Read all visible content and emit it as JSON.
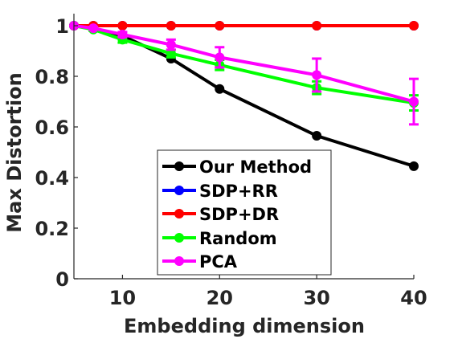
{
  "chart_data": {
    "type": "line",
    "title": "",
    "xlabel": "Embedding dimension",
    "ylabel": "Max Distortion",
    "xlim": [
      5,
      40
    ],
    "ylim": [
      0,
      1
    ],
    "xticks": [
      10,
      20,
      30,
      40
    ],
    "yticks": [
      0,
      0.2,
      0.4,
      0.6,
      0.8,
      1
    ],
    "xtick_labels": [
      "10",
      "20",
      "30",
      "40"
    ],
    "ytick_labels": [
      "0",
      "0.2",
      "0.4",
      "0.6",
      "0.8",
      "1"
    ],
    "grid": false,
    "legend_position": "bottom-center",
    "series": [
      {
        "name": "Our Method",
        "color": "#000000",
        "x": [
          5,
          7,
          10,
          15,
          20,
          30,
          40
        ],
        "y": [
          1.0,
          0.99,
          0.96,
          0.87,
          0.75,
          0.565,
          0.445
        ],
        "err": []
      },
      {
        "name": "SDP+RR",
        "color": "#0000ff",
        "x": [
          5,
          7,
          10,
          15,
          20,
          30,
          40
        ],
        "y": [
          1,
          1,
          1,
          1,
          1,
          1,
          1
        ],
        "err": []
      },
      {
        "name": "SDP+DR",
        "color": "#ff0000",
        "x": [
          5,
          7,
          10,
          15,
          20,
          30,
          40
        ],
        "y": [
          1,
          1,
          1,
          1,
          1,
          1,
          1
        ],
        "err": []
      },
      {
        "name": "Random",
        "color": "#00ff00",
        "x": [
          5,
          7,
          10,
          15,
          20,
          30,
          40
        ],
        "y": [
          1.0,
          0.985,
          0.945,
          0.89,
          0.845,
          0.755,
          0.695
        ],
        "err": [
          0,
          0.005,
          0.012,
          0.015,
          0.02,
          0.025,
          0.03
        ]
      },
      {
        "name": "PCA",
        "color": "#ff00ff",
        "x": [
          5,
          7,
          10,
          15,
          20,
          30,
          40
        ],
        "y": [
          1.0,
          0.99,
          0.965,
          0.925,
          0.875,
          0.805,
          0.7
        ],
        "err": [
          0,
          0.005,
          0.01,
          0.02,
          0.04,
          0.065,
          0.09
        ]
      }
    ]
  }
}
